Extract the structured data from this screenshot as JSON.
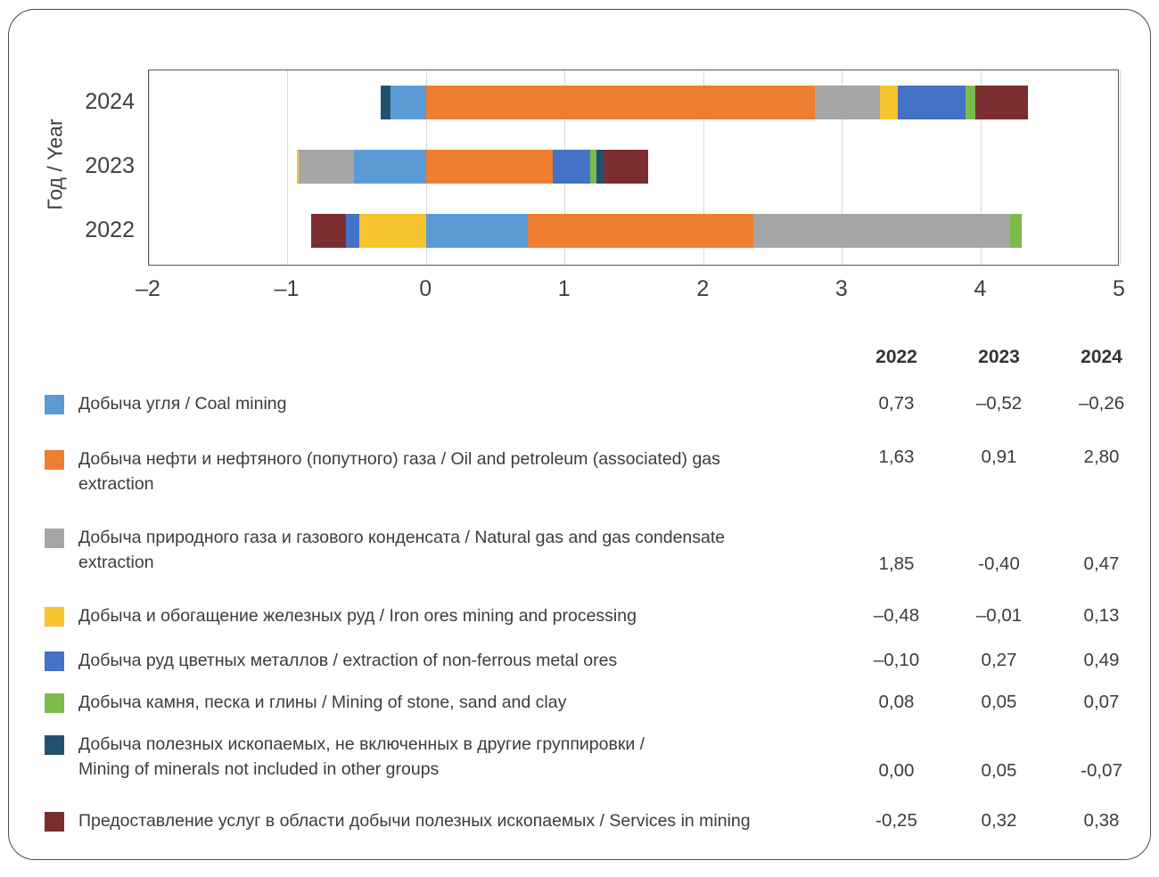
{
  "chart_data": {
    "type": "bar",
    "orientation": "horizontal",
    "stacked": true,
    "ylabel": "Год / Year",
    "years": [
      "2024",
      "2023",
      "2022"
    ],
    "xlim": [
      -2,
      5
    ],
    "xticks": [
      "–2",
      "–1",
      "0",
      "1",
      "2",
      "3",
      "4",
      "5"
    ],
    "xtick_values": [
      -2,
      -1,
      0,
      1,
      2,
      3,
      4,
      5
    ],
    "grid": "vertical-light-gray",
    "legend_position": "below-as-table",
    "series": [
      {
        "id": "coal",
        "name": "Добыча угля / Coal mining",
        "color": "#5B9BD5",
        "values": {
          "2022": 0.73,
          "2023": -0.52,
          "2024": -0.26
        }
      },
      {
        "id": "oil",
        "name": "Добыча нефти и нефтяного (попутного) газа / Oil and petroleum (associated) gas extraction",
        "color": "#ED7D31",
        "values": {
          "2022": 1.63,
          "2023": 0.91,
          "2024": 2.8
        }
      },
      {
        "id": "gas",
        "name": "Добыча природного газа и газового конденсата / Natural gas and gas condensate extraction",
        "color": "#A6A6A6",
        "values": {
          "2022": 1.85,
          "2023": -0.4,
          "2024": 0.47
        }
      },
      {
        "id": "iron",
        "name": "Добыча и обогащение железных руд / Iron ores mining and processing",
        "color": "#F7C32F",
        "values": {
          "2022": -0.48,
          "2023": -0.01,
          "2024": 0.13
        }
      },
      {
        "id": "nonferrous",
        "name": "Добыча руд цветных металлов / extraction of non-ferrous metal ores",
        "color": "#4472C4",
        "values": {
          "2022": -0.1,
          "2023": 0.27,
          "2024": 0.49
        }
      },
      {
        "id": "stone",
        "name": "Добыча камня, песка и глины / Mining of stone, sand and clay",
        "color": "#7CBB4C",
        "values": {
          "2022": 0.08,
          "2023": 0.05,
          "2024": 0.07
        }
      },
      {
        "id": "minerals",
        "name": "Добыча полезных ископаемых, не включенных в другие группировки / Mining of minerals not included in other groups",
        "color": "#24506F",
        "values": {
          "2022": 0.0,
          "2023": 0.05,
          "2024": -0.07
        }
      },
      {
        "id": "services",
        "name": "Предоставление услуг в области добычи полезных ископаемых / Services in mining",
        "color": "#7B2D30",
        "values": {
          "2022": -0.25,
          "2023": 0.32,
          "2024": 0.38
        }
      }
    ]
  },
  "legend_table": {
    "col_headers": [
      "2022",
      "2023",
      "2024"
    ],
    "rows": [
      {
        "label": "Добыча угля / Coal mining",
        "color": "#5B9BD5",
        "display": [
          "0,73",
          "–0,52",
          "–0,26"
        ]
      },
      {
        "label": "Добыча нефти и нефтяного (попутного) газа / Oil and petroleum (associated) gas\nextraction",
        "color": "#ED7D31",
        "display": [
          "1,63",
          "0,91",
          "2,80"
        ]
      },
      {
        "label": "Добыча природного газа и газового конденсата / Natural gas and gas condensate\nextraction",
        "color": "#A6A6A6",
        "display": [
          "1,85",
          "-0,40",
          "0,47"
        ]
      },
      {
        "label": "Добыча и обогащение железных руд / Iron ores mining and processing",
        "color": "#F7C32F",
        "display": [
          "–0,48",
          "–0,01",
          "0,13"
        ]
      },
      {
        "label": "Добыча руд цветных металлов / extraction of non-ferrous metal ores",
        "color": "#4472C4",
        "display": [
          "–0,10",
          "0,27",
          "0,49"
        ]
      },
      {
        "label": "Добыча камня, песка и глины / Mining of stone, sand and clay",
        "color": "#7CBB4C",
        "display": [
          "0,08",
          "0,05",
          "0,07"
        ]
      },
      {
        "label": "Добыча полезных ископаемых, не включенных в другие группировки /\nMining of minerals not included in other groups",
        "color": "#24506F",
        "display": [
          "0,00",
          "0,05",
          "-0,07"
        ]
      },
      {
        "label": "Предоставление услуг в области добычи полезных ископаемых / Services in mining",
        "color": "#7B2D30",
        "display": [
          "-0,25",
          "0,32",
          "0,38"
        ]
      }
    ]
  }
}
